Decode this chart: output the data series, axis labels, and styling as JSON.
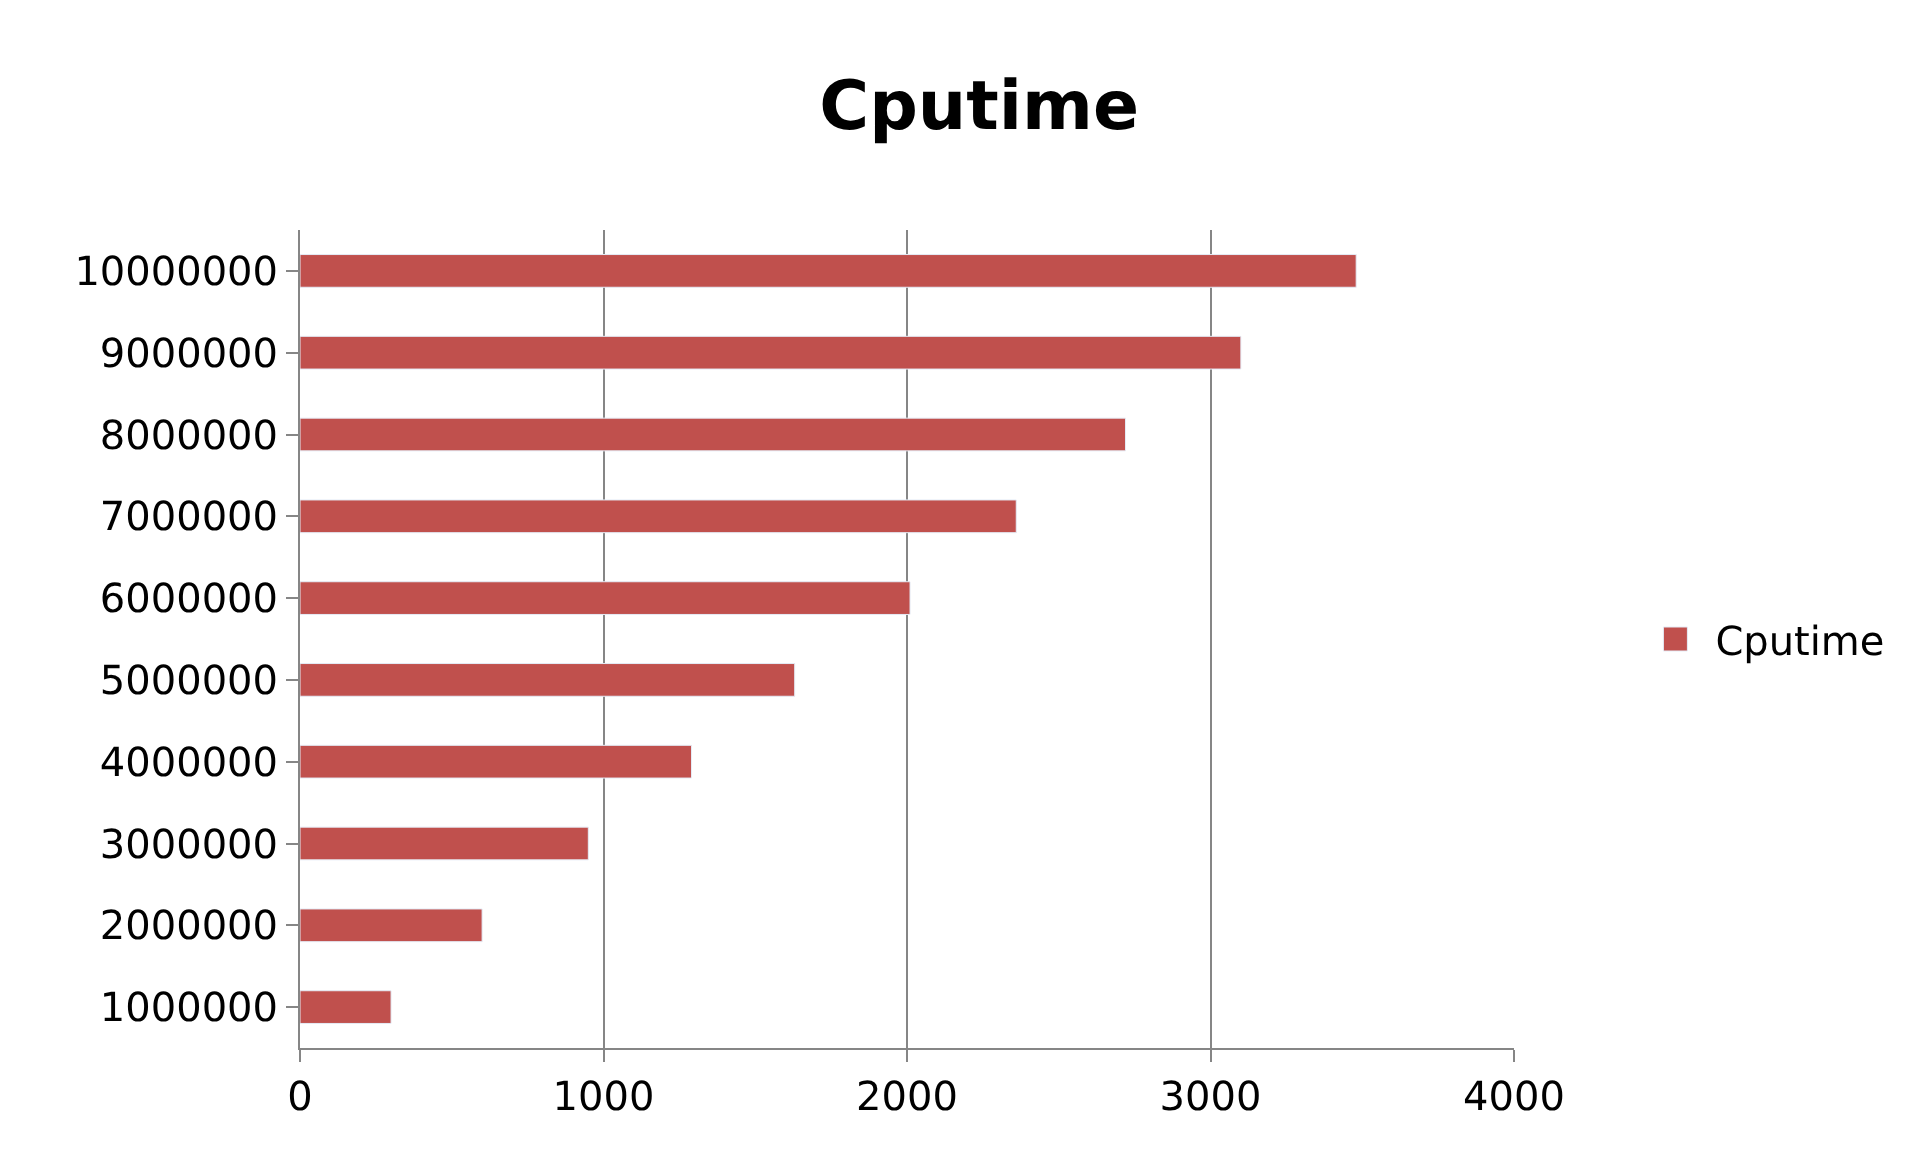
{
  "chart_data": {
    "type": "bar",
    "orientation": "horizontal",
    "title": "Cputime",
    "categories": [
      "10000000",
      "9000000",
      "8000000",
      "7000000",
      "6000000",
      "5000000",
      "4000000",
      "3000000",
      "2000000",
      "1000000"
    ],
    "series": [
      {
        "name": "Cputime",
        "color": "#c0504d",
        "values": [
          3480,
          3100,
          2720,
          2360,
          2010,
          1630,
          1290,
          950,
          600,
          300
        ]
      }
    ],
    "xlim": [
      0,
      4000
    ],
    "xticks": [
      0,
      1000,
      2000,
      3000,
      4000
    ],
    "grid": "x",
    "legend": "right"
  }
}
